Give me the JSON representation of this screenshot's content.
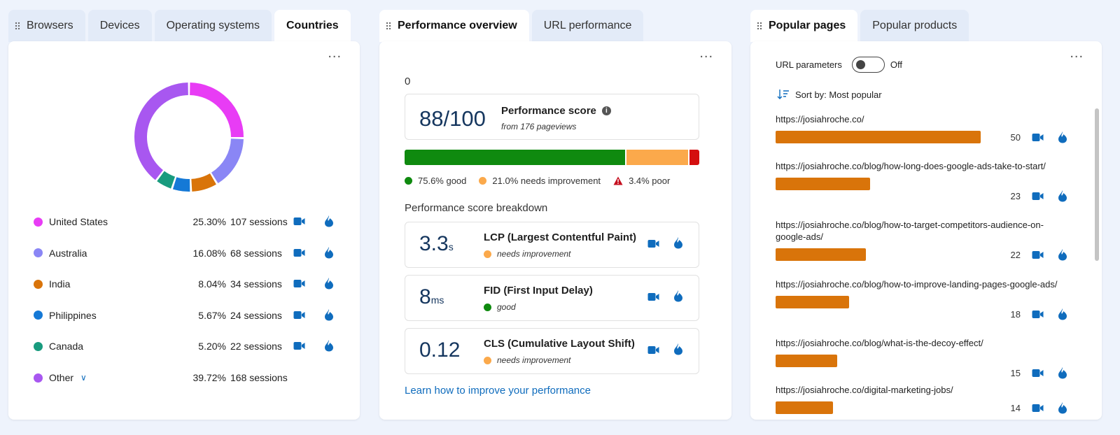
{
  "panel1": {
    "tabs": [
      {
        "label": "Browsers",
        "active": false
      },
      {
        "label": "Devices",
        "active": false
      },
      {
        "label": "Operating systems",
        "active": false
      },
      {
        "label": "Countries",
        "active": true
      }
    ],
    "more_label": "...",
    "countries": [
      {
        "name": "United States",
        "percent": "25.30%",
        "sessions": "107 sessions",
        "color": "#e83cf5"
      },
      {
        "name": "Australia",
        "percent": "16.08%",
        "sessions": "68 sessions",
        "color": "#8a86f5"
      },
      {
        "name": "India",
        "percent": "8.04%",
        "sessions": "34 sessions",
        "color": "#d9740a"
      },
      {
        "name": "Philippines",
        "percent": "5.67%",
        "sessions": "24 sessions",
        "color": "#1579d6"
      },
      {
        "name": "Canada",
        "percent": "5.20%",
        "sessions": "22 sessions",
        "color": "#189b7e"
      },
      {
        "name": "Other",
        "percent": "39.72%",
        "sessions": "168 sessions",
        "color": "#a857f0"
      }
    ]
  },
  "panel2": {
    "tabs": [
      {
        "label": "Performance overview",
        "active": true
      },
      {
        "label": "URL performance",
        "active": false
      }
    ],
    "more_label": "...",
    "zero_label": "0",
    "score": {
      "value": "88/100",
      "title": "Performance score",
      "subtitle": "from 176 pageviews"
    },
    "distribution": [
      {
        "label": "75.6% good",
        "fraction": 0.756,
        "color": "#0f8a0f"
      },
      {
        "label": "21.0% needs improvement",
        "fraction": 0.21,
        "color": "#fba94b"
      },
      {
        "label": "3.4% poor",
        "fraction": 0.034,
        "color": "#d40f0f"
      }
    ],
    "breakdown_title": "Performance score breakdown",
    "metrics": [
      {
        "value": "3.3",
        "unit": "s",
        "name": "LCP (Largest Contentful Paint)",
        "status": "needs improvement",
        "status_color": "#fba94b"
      },
      {
        "value": "8",
        "unit": "ms",
        "name": "FID (First Input Delay)",
        "status": "good",
        "status_color": "#0f8a0f"
      },
      {
        "value": "0.12",
        "unit": "",
        "name": "CLS (Cumulative Layout Shift)",
        "status": "needs improvement",
        "status_color": "#fba94b"
      }
    ],
    "learn_link": "Learn how to improve your performance"
  },
  "panel3": {
    "tabs": [
      {
        "label": "Popular pages",
        "active": true
      },
      {
        "label": "Popular products",
        "active": false
      }
    ],
    "more_label": "...",
    "url_params_label": "URL parameters",
    "url_params_state": "Off",
    "sort_label": "Sort by: Most popular",
    "pages": [
      {
        "url": "https://josiahroche.co/",
        "count": "50",
        "fraction": 1.0
      },
      {
        "url": "https://josiahroche.co/blog/how-long-does-google-ads-take-to-start/",
        "count": "23",
        "fraction": 0.46
      },
      {
        "url": "https://josiahroche.co/blog/how-to-target-competitors-audience-on-google-ads/",
        "count": "22",
        "fraction": 0.44
      },
      {
        "url": "https://josiahroche.co/blog/how-to-improve-landing-pages-google-ads/",
        "count": "18",
        "fraction": 0.36
      },
      {
        "url": "https://josiahroche.co/blog/what-is-the-decoy-effect/",
        "count": "15",
        "fraction": 0.3
      },
      {
        "url": "https://josiahroche.co/digital-marketing-jobs/",
        "count": "14",
        "fraction": 0.28
      }
    ]
  }
}
